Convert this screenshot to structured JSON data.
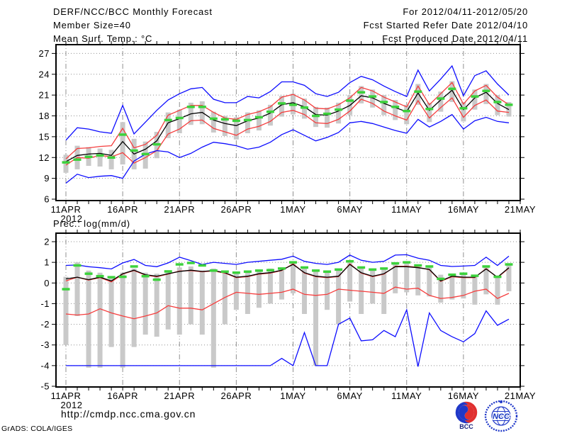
{
  "header": {
    "program": "DERF/NCC/BCC Monthly Forecast",
    "member_size": "Member Size=40",
    "for_range": "For 2012/04/11-2012/05/20",
    "refer_date": "Fcst Started Refer Date 2012/04/10",
    "produced_date": "Fcst Produced Date 2012/04/11"
  },
  "footer": {
    "url": "http://cmdp.ncc.cma.gov.cn",
    "credit": "GrADS: COLA/IGES",
    "logo_bcc_label": "BCC",
    "logo_ncc_label": "NCC"
  },
  "colors": {
    "blue": "#0d0dff",
    "red": "#f53d3d",
    "green": "#3cd23c",
    "bar_gray": "#c9c9c9",
    "grid_gray": "#909090",
    "axis_black": "#000000",
    "logo_navy": "#1a237e",
    "logo_blue": "#2038c8",
    "logo_red": "#e03030"
  },
  "chart_data": [
    {
      "type": "line",
      "title": "Mean Surf. Temp.: °C",
      "x_tick_labels": [
        "11APR",
        "16APR",
        "21APR",
        "26APR",
        "1MAY",
        "6MAY",
        "11MAY",
        "16MAY",
        "21MAY"
      ],
      "x_year": "2012",
      "ylim": [
        6,
        27
      ],
      "yticks": [
        6,
        9,
        12,
        15,
        18,
        21,
        24,
        27
      ],
      "grid": true,
      "legend": "none",
      "series": [
        {
          "name": "max_blue",
          "color": "#0d0dff",
          "values": [
            14.5,
            16.3,
            16.1,
            15.7,
            15.5,
            19.5,
            15.4,
            17.1,
            18.8,
            20.3,
            21.2,
            21.9,
            22.1,
            20.4,
            19.9,
            19.9,
            20.8,
            20.6,
            21.5,
            22.9,
            22.9,
            22.4,
            21.2,
            20.8,
            21.4,
            22.8,
            23.7,
            23.2,
            22.3,
            21.5,
            20.8,
            24.6,
            21.6,
            23.3,
            25.2,
            20.9,
            23.8,
            24.5,
            22.6,
            21.0
          ]
        },
        {
          "name": "upper_red",
          "color": "#f53d3d",
          "values": [
            11.8,
            13.3,
            13.4,
            13.6,
            13.7,
            16.2,
            13.4,
            13.9,
            15.2,
            18.1,
            18.8,
            19.5,
            19.5,
            18.5,
            17.7,
            17.5,
            18.2,
            18.6,
            19.3,
            20.7,
            21.1,
            20.3,
            19.1,
            19.0,
            19.6,
            20.6,
            22.1,
            21.6,
            20.7,
            20.0,
            19.3,
            22.3,
            19.6,
            21.2,
            22.8,
            19.7,
            21.6,
            22.4,
            20.7,
            19.6
          ]
        },
        {
          "name": "median_black",
          "color": "#000000",
          "values": [
            11.4,
            12.3,
            12.5,
            12.6,
            12.3,
            14.3,
            12.5,
            13.2,
            14.4,
            17.0,
            17.6,
            18.3,
            18.5,
            17.4,
            16.9,
            16.6,
            17.3,
            17.7,
            18.4,
            19.6,
            19.9,
            19.3,
            18.2,
            18.1,
            18.7,
            19.5,
            20.9,
            20.6,
            19.8,
            19.2,
            18.6,
            21.3,
            18.8,
            20.3,
            21.7,
            18.9,
            20.6,
            21.4,
            19.8,
            18.9
          ]
        },
        {
          "name": "lower_red",
          "color": "#f53d3d",
          "values": [
            10.9,
            12.0,
            11.9,
            12.3,
            12.1,
            12.7,
            11.2,
            12.0,
            13.0,
            15.4,
            16.1,
            17.3,
            17.4,
            16.2,
            15.7,
            15.2,
            16.1,
            16.5,
            17.2,
            18.5,
            18.8,
            18.2,
            17.0,
            16.9,
            17.5,
            18.7,
            20.4,
            19.8,
            18.7,
            18.0,
            17.4,
            20.2,
            17.7,
            19.2,
            20.6,
            17.8,
            19.5,
            20.3,
            18.7,
            18.5
          ]
        },
        {
          "name": "min_blue",
          "color": "#0d0dff",
          "values": [
            8.3,
            9.6,
            9.1,
            9.3,
            9.4,
            9.0,
            11.5,
            12.5,
            13.0,
            12.8,
            12.0,
            12.6,
            13.5,
            14.2,
            14.0,
            13.7,
            13.2,
            13.5,
            14.2,
            15.3,
            16.0,
            15.2,
            14.4,
            14.9,
            15.6,
            17.0,
            17.2,
            16.9,
            16.4,
            15.9,
            15.5,
            17.5,
            16.4,
            17.2,
            18.2,
            16.1,
            17.3,
            17.8,
            17.2,
            17.0
          ]
        }
      ],
      "mean_dash": {
        "name": "mean_green",
        "color": "#3cd23c",
        "values": [
          11.3,
          11.7,
          12.1,
          12.3,
          12.0,
          15.3,
          13.0,
          12.5,
          13.9,
          17.4,
          17.7,
          19.3,
          19.3,
          17.6,
          17.5,
          17.3,
          17.4,
          17.8,
          18.6,
          19.8,
          19.6,
          19.2,
          18.0,
          18.3,
          18.9,
          20.2,
          21.4,
          20.8,
          20.0,
          19.3,
          18.7,
          21.5,
          19.0,
          20.5,
          21.9,
          19.1,
          20.8,
          21.6,
          20.0,
          19.6
        ]
      },
      "spread_bar": {
        "color": "#c9c9c9",
        "top": [
          12.4,
          13.7,
          13.5,
          13.3,
          13.1,
          17.1,
          14.7,
          14.3,
          15.7,
          18.5,
          18.9,
          19.9,
          20.1,
          18.6,
          18.0,
          17.8,
          18.5,
          18.8,
          19.6,
          20.9,
          21.2,
          20.5,
          19.3,
          19.2,
          19.9,
          21.0,
          22.3,
          21.8,
          21.0,
          20.3,
          19.6,
          22.6,
          19.9,
          21.5,
          23.0,
          20.0,
          21.8,
          22.6,
          21.0,
          20.0
        ],
        "bottom": [
          9.8,
          10.3,
          10.8,
          10.7,
          10.3,
          11.0,
          10.3,
          10.4,
          11.9,
          14.8,
          15.5,
          16.7,
          16.8,
          15.6,
          15.1,
          14.6,
          15.5,
          15.9,
          16.6,
          17.9,
          18.2,
          17.6,
          16.4,
          16.3,
          16.9,
          18.1,
          19.8,
          19.2,
          18.1,
          17.4,
          16.8,
          19.6,
          17.1,
          18.6,
          20.0,
          17.2,
          18.9,
          19.7,
          18.1,
          17.9
        ]
      }
    },
    {
      "type": "line",
      "title": "Prec.: log(mm/d)",
      "x_tick_labels": [
        "11APR",
        "16APR",
        "21APR",
        "26APR",
        "1MAY",
        "6MAY",
        "11MAY",
        "16MAY",
        "21MAY"
      ],
      "x_year": "2012",
      "ylim": [
        -5,
        2
      ],
      "yticks": [
        -5,
        -4,
        -3,
        -2,
        -1,
        0,
        1,
        2
      ],
      "grid": true,
      "legend": "none",
      "series": [
        {
          "name": "max_blue",
          "color": "#0d0dff",
          "values": [
            0.85,
            0.87,
            0.79,
            0.74,
            0.68,
            0.97,
            1.14,
            0.85,
            0.79,
            0.97,
            1.25,
            1.08,
            0.9,
            1.0,
            0.95,
            0.9,
            1.0,
            1.05,
            1.1,
            1.15,
            1.3,
            1.05,
            0.95,
            0.9,
            1.0,
            1.35,
            1.1,
            1.0,
            1.05,
            1.35,
            1.37,
            1.2,
            1.1,
            0.85,
            0.8,
            0.82,
            0.85,
            1.25,
            0.85,
            1.3
          ]
        },
        {
          "name": "upper_red",
          "color": "#f53d3d",
          "values": [
            0.1,
            0.28,
            0.14,
            0.26,
            0.05,
            0.43,
            0.6,
            0.38,
            0.3,
            0.43,
            0.58,
            0.6,
            0.54,
            0.58,
            0.48,
            0.26,
            0.31,
            0.43,
            0.48,
            0.6,
            0.93,
            0.48,
            0.31,
            0.26,
            0.31,
            0.93,
            0.48,
            0.31,
            0.43,
            0.81,
            0.81,
            0.76,
            0.64,
            0.08,
            0.3,
            0.26,
            0.26,
            0.7,
            0.26,
            0.72
          ]
        },
        {
          "name": "median_black",
          "color": "#000000",
          "values": [
            0.2,
            0.28,
            0.16,
            0.28,
            0.1,
            0.45,
            0.62,
            0.4,
            0.33,
            0.45,
            0.56,
            0.62,
            0.56,
            0.6,
            0.5,
            0.28,
            0.33,
            0.45,
            0.5,
            0.62,
            0.9,
            0.5,
            0.33,
            0.28,
            0.33,
            0.9,
            0.5,
            0.33,
            0.45,
            0.79,
            0.79,
            0.74,
            0.66,
            0.1,
            0.33,
            0.28,
            0.28,
            0.68,
            0.28,
            0.74
          ]
        },
        {
          "name": "lower_red",
          "color": "#f53d3d",
          "values": [
            -1.5,
            -1.55,
            -1.5,
            -1.25,
            -1.45,
            -1.6,
            -1.73,
            -1.6,
            -1.45,
            -1.1,
            -1.22,
            -1.22,
            -1.3,
            -1.0,
            -0.7,
            -0.45,
            -0.5,
            -0.55,
            -0.5,
            -0.45,
            -0.3,
            -0.55,
            -0.6,
            -0.55,
            -0.3,
            -0.35,
            -0.4,
            -0.45,
            -0.5,
            -0.2,
            -0.3,
            -0.25,
            -0.6,
            -0.75,
            -0.7,
            -0.6,
            -0.4,
            -0.3,
            -0.75,
            -0.5
          ]
        },
        {
          "name": "min_blue",
          "color": "#0d0dff",
          "values": [
            -4,
            -4,
            -4,
            -4,
            -4,
            -4,
            -4,
            -4,
            -4,
            -4,
            -4,
            -4,
            -4,
            -4,
            -4,
            -4,
            -4,
            -4,
            -4,
            -3.65,
            -4,
            -2.4,
            -4,
            -4,
            -2.0,
            -1.7,
            -2.8,
            -2.75,
            -2.3,
            -2.6,
            -1.3,
            -4.05,
            -1.45,
            -2.3,
            -2.6,
            -2.85,
            -2.45,
            -1.35,
            -2.05,
            -1.75
          ]
        }
      ],
      "mean_dash": {
        "name": "mean_green",
        "color": "#3cd23c",
        "values": [
          -0.3,
          0.85,
          0.45,
          0.33,
          0.28,
          0.3,
          0.8,
          0.33,
          0.16,
          0.56,
          0.9,
          0.97,
          0.85,
          0.6,
          0.55,
          0.5,
          0.55,
          0.6,
          0.62,
          0.7,
          1.0,
          0.75,
          0.6,
          0.55,
          0.65,
          1.05,
          0.75,
          0.65,
          0.7,
          0.95,
          1.0,
          0.85,
          0.8,
          0.2,
          0.4,
          0.45,
          0.35,
          0.8,
          0.3,
          0.9
        ]
      },
      "spread_bar": {
        "color": "#c9c9c9",
        "top": [
          0.3,
          1.0,
          0.6,
          0.5,
          0.3,
          0.5,
          0.7,
          0.5,
          0.45,
          0.6,
          0.75,
          0.8,
          0.6,
          0.7,
          0.6,
          0.55,
          0.6,
          0.65,
          0.7,
          0.75,
          1.05,
          0.8,
          0.65,
          0.6,
          0.7,
          1.1,
          0.8,
          0.7,
          0.75,
          1.0,
          1.05,
          0.9,
          0.85,
          0.4,
          0.45,
          0.5,
          0.4,
          0.85,
          0.35,
          0.95
        ],
        "bottom": [
          -3.0,
          -1.6,
          -4.1,
          -4.1,
          -3.1,
          -4.1,
          -3.1,
          -2.5,
          -2.6,
          -2.25,
          -2.5,
          -2.0,
          -2.5,
          -4.1,
          -2.0,
          -1.3,
          -1.5,
          -1.2,
          -1.0,
          -0.8,
          -0.5,
          -1.5,
          -4.0,
          -1.3,
          -2.0,
          -0.9,
          -1.5,
          -1.0,
          -1.5,
          -0.5,
          -0.45,
          -0.6,
          -0.65,
          -0.95,
          -0.8,
          -0.75,
          -1.05,
          -0.55,
          -1.05,
          -0.4
        ]
      }
    }
  ]
}
